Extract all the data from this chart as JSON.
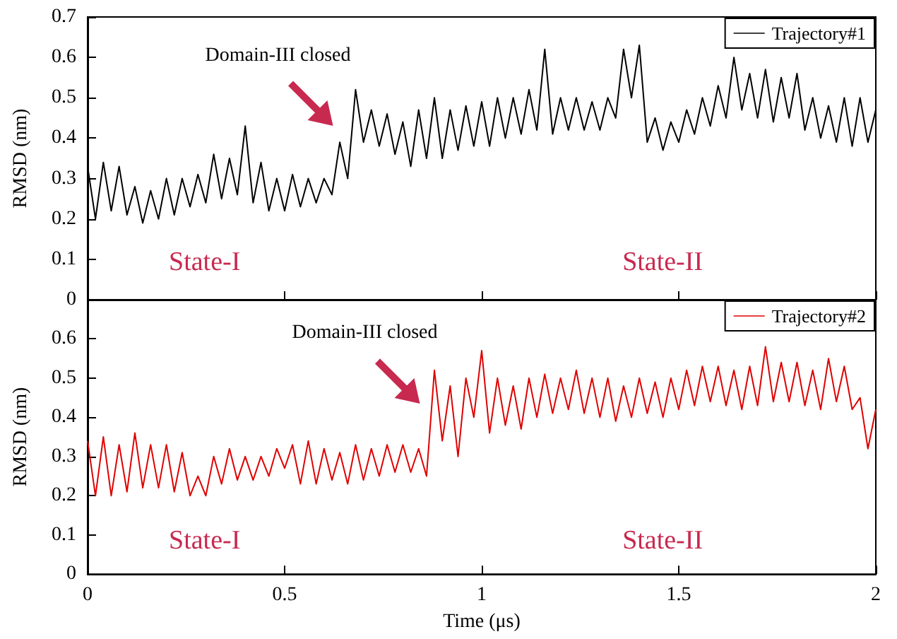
{
  "chart_data": [
    {
      "type": "line",
      "xlim": [
        0,
        2
      ],
      "xticks": [
        0,
        0.5,
        1,
        1.5,
        2
      ],
      "ylim": [
        0,
        0.7
      ],
      "yticks": [
        0,
        0.1,
        0.2,
        0.3,
        0.4,
        0.5,
        0.6,
        0.7
      ],
      "ylabel": "RMSD (nm)",
      "tick_labels": "y",
      "legend": "top right",
      "grid": false,
      "marker": "none",
      "line_style": "solid",
      "annotations": [
        "Domain-III closed",
        "State-I",
        "State-II"
      ],
      "x": [
        0,
        0.02,
        0.04,
        0.06,
        0.08,
        0.1,
        0.12,
        0.14,
        0.16,
        0.18,
        0.2,
        0.22,
        0.24,
        0.26,
        0.28,
        0.3,
        0.32,
        0.34,
        0.36,
        0.38,
        0.4,
        0.42,
        0.44,
        0.46,
        0.48,
        0.5,
        0.52,
        0.54,
        0.56,
        0.58,
        0.6,
        0.62,
        0.64,
        0.66,
        0.68,
        0.7,
        0.72,
        0.74,
        0.76,
        0.78,
        0.8,
        0.82,
        0.84,
        0.86,
        0.88,
        0.9,
        0.92,
        0.94,
        0.96,
        0.98,
        1,
        1.02,
        1.04,
        1.06,
        1.08,
        1.1,
        1.12,
        1.14,
        1.16,
        1.18,
        1.2,
        1.22,
        1.24,
        1.26,
        1.28,
        1.3,
        1.32,
        1.34,
        1.36,
        1.38,
        1.4,
        1.42,
        1.44,
        1.46,
        1.48,
        1.5,
        1.52,
        1.54,
        1.56,
        1.58,
        1.6,
        1.62,
        1.64,
        1.66,
        1.68,
        1.7,
        1.72,
        1.74,
        1.76,
        1.78,
        1.8,
        1.82,
        1.84,
        1.86,
        1.88,
        1.9,
        1.92,
        1.94,
        1.96,
        1.98,
        2
      ],
      "series": [
        {
          "name": "Trajectory#1",
          "color": "#000000",
          "values": [
            0.33,
            0.2,
            0.34,
            0.22,
            0.33,
            0.21,
            0.28,
            0.19,
            0.27,
            0.2,
            0.3,
            0.21,
            0.3,
            0.23,
            0.31,
            0.24,
            0.36,
            0.25,
            0.35,
            0.26,
            0.43,
            0.24,
            0.34,
            0.22,
            0.3,
            0.22,
            0.31,
            0.23,
            0.3,
            0.24,
            0.3,
            0.26,
            0.39,
            0.3,
            0.52,
            0.39,
            0.47,
            0.38,
            0.46,
            0.36,
            0.44,
            0.33,
            0.47,
            0.35,
            0.5,
            0.35,
            0.47,
            0.37,
            0.48,
            0.38,
            0.49,
            0.38,
            0.5,
            0.4,
            0.5,
            0.41,
            0.52,
            0.42,
            0.62,
            0.41,
            0.5,
            0.42,
            0.5,
            0.42,
            0.49,
            0.42,
            0.5,
            0.45,
            0.62,
            0.5,
            0.63,
            0.39,
            0.45,
            0.37,
            0.44,
            0.39,
            0.47,
            0.41,
            0.5,
            0.43,
            0.53,
            0.45,
            0.6,
            0.47,
            0.56,
            0.45,
            0.57,
            0.44,
            0.55,
            0.45,
            0.56,
            0.42,
            0.5,
            0.4,
            0.48,
            0.39,
            0.5,
            0.38,
            0.5,
            0.39,
            0.47
          ]
        }
      ]
    },
    {
      "type": "line",
      "xlim": [
        0,
        2
      ],
      "xticks": [
        0,
        0.5,
        1,
        1.5,
        2
      ],
      "ylim": [
        0,
        0.7
      ],
      "yticks": [
        0,
        0.1,
        0.2,
        0.3,
        0.4,
        0.5,
        0.6
      ],
      "xlabel": "Time (μs)",
      "ylabel": "RMSD (nm)",
      "legend": "top right",
      "grid": false,
      "marker": "none",
      "line_style": "solid",
      "annotations": [
        "Domain-III closed",
        "State-I",
        "State-II"
      ],
      "x": [
        0,
        0.02,
        0.04,
        0.06,
        0.08,
        0.1,
        0.12,
        0.14,
        0.16,
        0.18,
        0.2,
        0.22,
        0.24,
        0.26,
        0.28,
        0.3,
        0.32,
        0.34,
        0.36,
        0.38,
        0.4,
        0.42,
        0.44,
        0.46,
        0.48,
        0.5,
        0.52,
        0.54,
        0.56,
        0.58,
        0.6,
        0.62,
        0.64,
        0.66,
        0.68,
        0.7,
        0.72,
        0.74,
        0.76,
        0.78,
        0.8,
        0.82,
        0.84,
        0.86,
        0.88,
        0.9,
        0.92,
        0.94,
        0.96,
        0.98,
        1,
        1.02,
        1.04,
        1.06,
        1.08,
        1.1,
        1.12,
        1.14,
        1.16,
        1.18,
        1.2,
        1.22,
        1.24,
        1.26,
        1.28,
        1.3,
        1.32,
        1.34,
        1.36,
        1.38,
        1.4,
        1.42,
        1.44,
        1.46,
        1.48,
        1.5,
        1.52,
        1.54,
        1.56,
        1.58,
        1.6,
        1.62,
        1.64,
        1.66,
        1.68,
        1.7,
        1.72,
        1.74,
        1.76,
        1.78,
        1.8,
        1.82,
        1.84,
        1.86,
        1.88,
        1.9,
        1.92,
        1.94,
        1.96,
        1.98,
        2
      ],
      "series": [
        {
          "name": "Trajectory#2",
          "color": "#e00000",
          "values": [
            0.34,
            0.2,
            0.35,
            0.2,
            0.33,
            0.21,
            0.36,
            0.22,
            0.33,
            0.22,
            0.33,
            0.21,
            0.31,
            0.2,
            0.25,
            0.2,
            0.3,
            0.23,
            0.32,
            0.24,
            0.3,
            0.24,
            0.3,
            0.25,
            0.32,
            0.27,
            0.33,
            0.23,
            0.34,
            0.23,
            0.32,
            0.24,
            0.31,
            0.23,
            0.33,
            0.24,
            0.32,
            0.25,
            0.33,
            0.26,
            0.33,
            0.26,
            0.32,
            0.25,
            0.52,
            0.34,
            0.48,
            0.3,
            0.5,
            0.4,
            0.57,
            0.36,
            0.5,
            0.38,
            0.48,
            0.37,
            0.5,
            0.4,
            0.51,
            0.41,
            0.5,
            0.42,
            0.52,
            0.41,
            0.5,
            0.4,
            0.5,
            0.39,
            0.48,
            0.4,
            0.5,
            0.41,
            0.49,
            0.4,
            0.5,
            0.42,
            0.52,
            0.43,
            0.53,
            0.44,
            0.53,
            0.43,
            0.52,
            0.42,
            0.53,
            0.43,
            0.58,
            0.44,
            0.54,
            0.44,
            0.54,
            0.43,
            0.52,
            0.42,
            0.55,
            0.44,
            0.53,
            0.42,
            0.45,
            0.32,
            0.42
          ]
        }
      ]
    }
  ]
}
